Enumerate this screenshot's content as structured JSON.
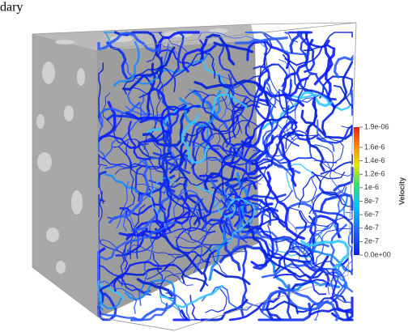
{
  "caption": "dary",
  "colorbar": {
    "title": "Velocity",
    "ticks": [
      {
        "value": 1.9e-06,
        "label": "1.9e-06"
      },
      {
        "value": 1.6e-06,
        "label": "1.6e-6"
      },
      {
        "value": 1.4e-06,
        "label": "1.4e-6"
      },
      {
        "value": 1.2e-06,
        "label": "1.2e-6"
      },
      {
        "value": 1e-06,
        "label": "1e-6"
      },
      {
        "value": 8e-07,
        "label": "8e-7"
      },
      {
        "value": 6e-07,
        "label": "6e-7"
      },
      {
        "value": 4e-07,
        "label": "4e-7"
      },
      {
        "value": 2e-07,
        "label": "2e-7"
      },
      {
        "value": 0,
        "label": "0.0e+00"
      }
    ]
  }
}
